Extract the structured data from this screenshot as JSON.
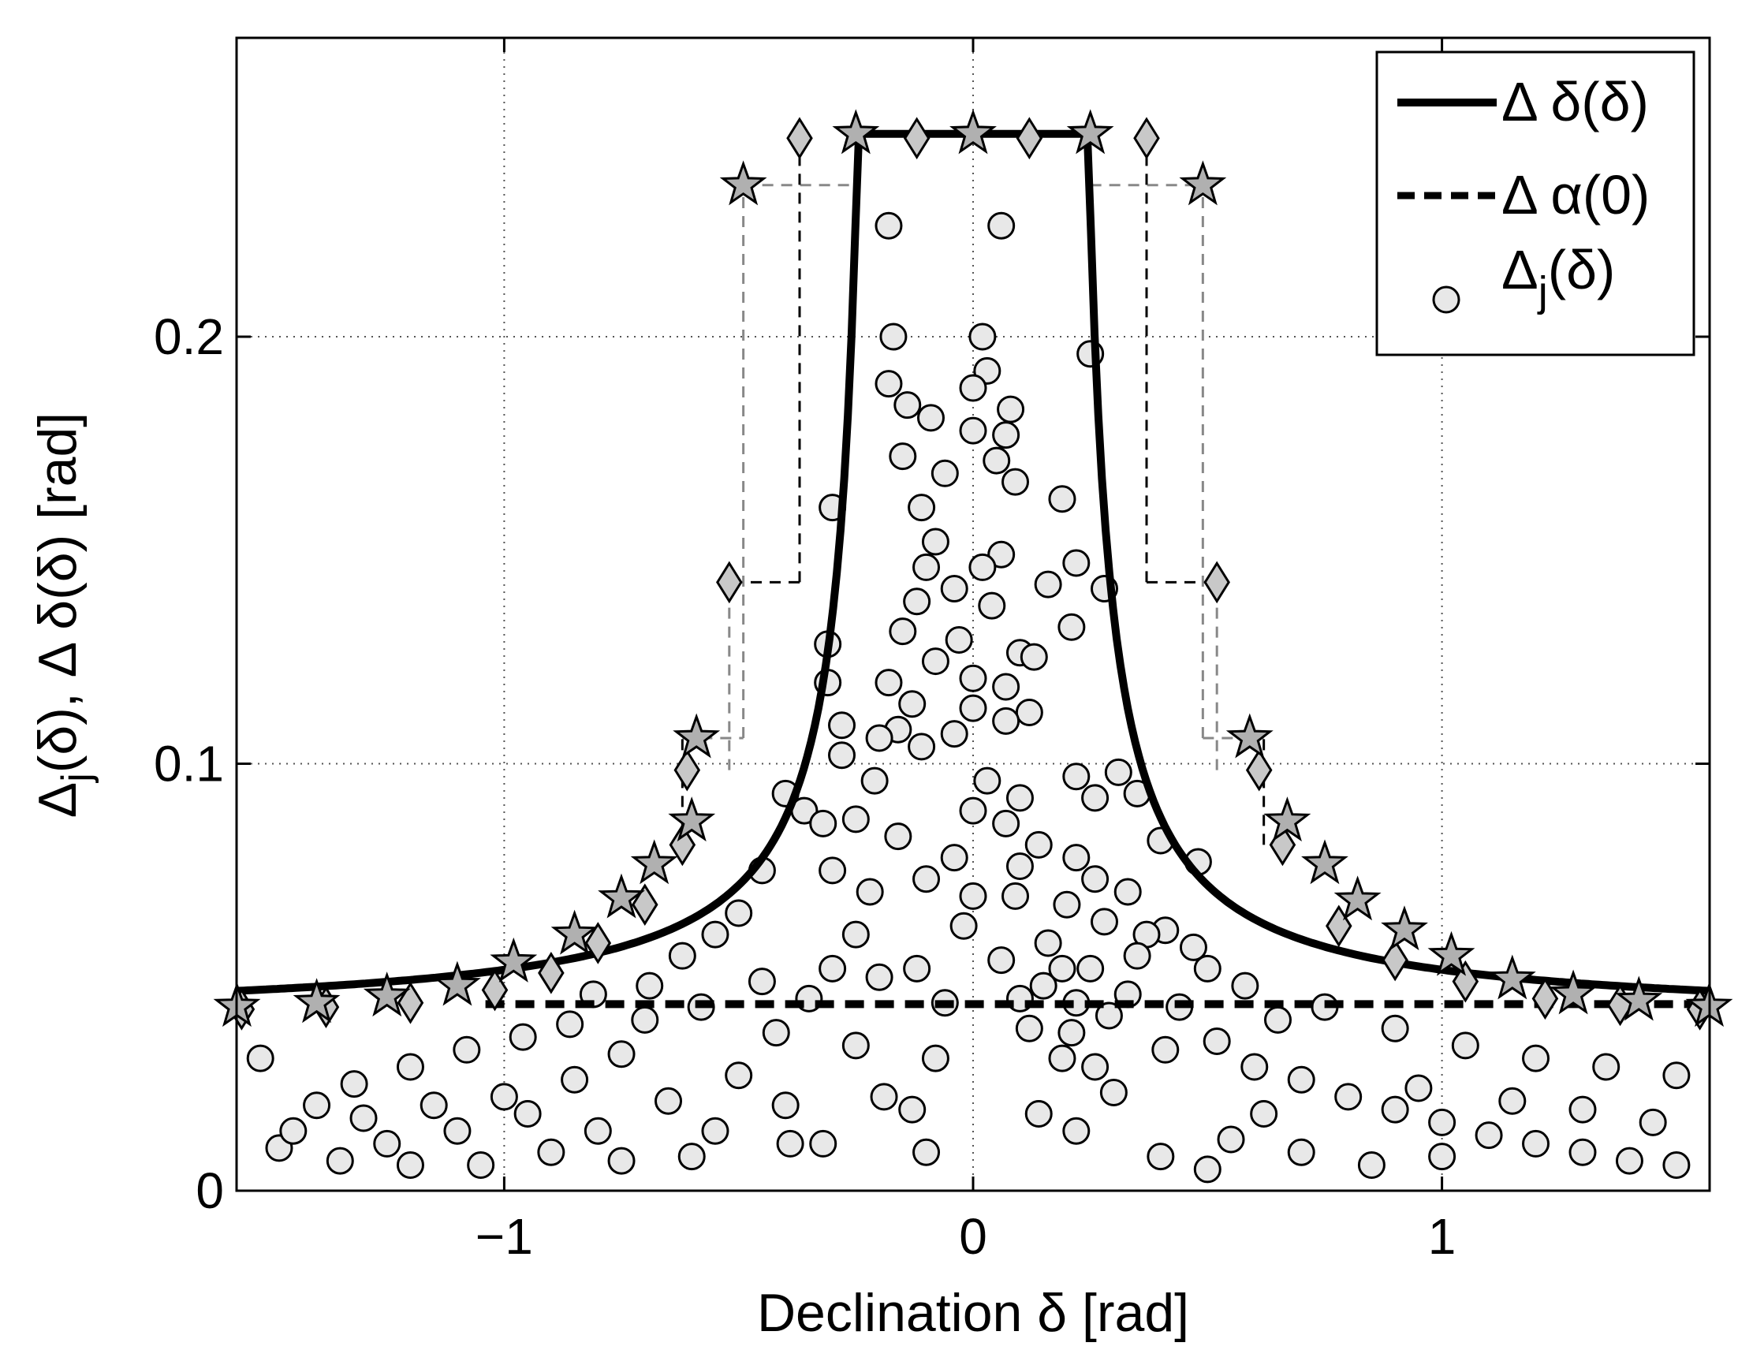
{
  "chart_data": {
    "type": "scatter",
    "title": "",
    "xlabel": "Declination δ [rad]",
    "ylabel": "Δj(δ), Δ δ(δ) [rad]",
    "ylabel_parts": {
      "pre": "Δ",
      "sub": "j",
      "post": "(δ), Δ δ(δ) [rad]"
    },
    "xlim": [
      -1.5708,
      1.5708
    ],
    "ylim": [
      0,
      0.27
    ],
    "xticks": [
      -1,
      0,
      1
    ],
    "xtick_labels": [
      "−1",
      "0",
      "1"
    ],
    "yticks": [
      0,
      0.1,
      0.2
    ],
    "ytick_labels": [
      "0",
      "0.1",
      "0.2"
    ],
    "grid": true,
    "legend_position": "top-right",
    "legend": [
      {
        "name": "Δ δ(δ)",
        "style": "solid"
      },
      {
        "name": "Δ α(0)",
        "style": "dashed"
      },
      {
        "name": "Δj(δ)",
        "style": "circle",
        "pre": "Δ",
        "sub": "j",
        "post": "(δ)"
      }
    ],
    "series": [
      {
        "name": "Δ δ(δ)",
        "kind": "line",
        "cap": 0.2475,
        "cap_half_width": 0.24,
        "asymptote": 0.0443
      },
      {
        "name": "Δ α(0)",
        "kind": "hline",
        "y": 0.0437,
        "x_range": [
          -1.04,
          1.53
        ]
      },
      {
        "name": "Δj(δ)",
        "kind": "scatter",
        "points": [
          [
            -0.18,
            0.226
          ],
          [
            0.06,
            0.226
          ],
          [
            -0.17,
            0.2
          ],
          [
            0.02,
            0.2
          ],
          [
            -0.18,
            0.189
          ],
          [
            0.25,
            0.196
          ],
          [
            0.03,
            0.192
          ],
          [
            -0.14,
            0.184
          ],
          [
            0.0,
            0.188
          ],
          [
            0.08,
            0.183
          ],
          [
            -0.09,
            0.181
          ],
          [
            0.0,
            0.178
          ],
          [
            0.07,
            0.177
          ],
          [
            -0.15,
            0.172
          ],
          [
            0.05,
            0.171
          ],
          [
            -0.06,
            0.168
          ],
          [
            0.09,
            0.166
          ],
          [
            -0.11,
            0.16
          ],
          [
            0.19,
            0.162
          ],
          [
            -0.3,
            0.16
          ],
          [
            -0.08,
            0.152
          ],
          [
            0.06,
            0.149
          ],
          [
            -0.1,
            0.146
          ],
          [
            0.02,
            0.146
          ],
          [
            0.16,
            0.142
          ],
          [
            0.22,
            0.147
          ],
          [
            -0.04,
            0.141
          ],
          [
            0.28,
            0.141
          ],
          [
            -0.12,
            0.138
          ],
          [
            0.04,
            0.137
          ],
          [
            -0.15,
            0.131
          ],
          [
            0.21,
            0.132
          ],
          [
            -0.03,
            0.129
          ],
          [
            0.1,
            0.126
          ],
          [
            -0.31,
            0.128
          ],
          [
            -0.08,
            0.124
          ],
          [
            0.0,
            0.12
          ],
          [
            0.13,
            0.125
          ],
          [
            -0.18,
            0.119
          ],
          [
            0.07,
            0.118
          ],
          [
            -0.31,
            0.119
          ],
          [
            -0.13,
            0.114
          ],
          [
            0.0,
            0.113
          ],
          [
            0.12,
            0.112
          ],
          [
            -0.16,
            0.108
          ],
          [
            -0.28,
            0.109
          ],
          [
            -0.04,
            0.107
          ],
          [
            0.07,
            0.11
          ],
          [
            -0.2,
            0.106
          ],
          [
            -0.11,
            0.104
          ],
          [
            -0.28,
            0.102
          ],
          [
            0.22,
            0.097
          ],
          [
            0.26,
            0.092
          ],
          [
            0.03,
            0.096
          ],
          [
            0.1,
            0.092
          ],
          [
            0.31,
            0.098
          ],
          [
            0.35,
            0.093
          ],
          [
            0.0,
            0.089
          ],
          [
            0.07,
            0.086
          ],
          [
            0.14,
            0.081
          ],
          [
            -0.04,
            0.078
          ],
          [
            0.22,
            0.078
          ],
          [
            0.1,
            0.076
          ],
          [
            0.4,
            0.082
          ],
          [
            0.48,
            0.077
          ],
          [
            0.26,
            0.073
          ],
          [
            0.33,
            0.07
          ],
          [
            0.2,
            0.067
          ],
          [
            0.0,
            0.069
          ],
          [
            0.09,
            0.069
          ],
          [
            0.28,
            0.063
          ],
          [
            0.41,
            0.061
          ],
          [
            0.37,
            0.06
          ],
          [
            0.16,
            0.058
          ],
          [
            0.06,
            0.054
          ],
          [
            0.19,
            0.052
          ],
          [
            0.35,
            0.055
          ],
          [
            0.47,
            0.057
          ],
          [
            0.1,
            0.045
          ],
          [
            0.22,
            0.044
          ],
          [
            0.29,
            0.041
          ],
          [
            0.21,
            0.037
          ],
          [
            0.26,
            0.029
          ],
          [
            0.19,
            0.031
          ],
          [
            0.41,
            0.033
          ],
          [
            0.3,
            0.023
          ],
          [
            0.14,
            0.018
          ],
          [
            0.22,
            0.014
          ],
          [
            -0.13,
            0.019
          ],
          [
            -0.19,
            0.022
          ],
          [
            -0.32,
            0.011
          ],
          [
            -0.39,
            0.011
          ],
          [
            -0.1,
            0.009
          ],
          [
            -0.08,
            0.031
          ],
          [
            -0.2,
            0.05
          ],
          [
            -0.25,
            0.06
          ],
          [
            -0.22,
            0.07
          ],
          [
            -0.3,
            0.075
          ],
          [
            -0.16,
            0.083
          ],
          [
            -0.1,
            0.073
          ],
          [
            -0.36,
            0.089
          ],
          [
            -0.32,
            0.086
          ],
          [
            -0.4,
            0.093
          ],
          [
            -0.21,
            0.096
          ],
          [
            -0.25,
            0.087
          ],
          [
            -0.45,
            0.075
          ],
          [
            -0.5,
            0.065
          ],
          [
            -0.55,
            0.06
          ],
          [
            -0.62,
            0.055
          ],
          [
            -0.69,
            0.048
          ],
          [
            -0.81,
            0.046
          ],
          [
            -0.75,
            0.032
          ],
          [
            -0.86,
            0.039
          ],
          [
            -0.96,
            0.036
          ],
          [
            -1.08,
            0.033
          ],
          [
            -1.2,
            0.029
          ],
          [
            -1.32,
            0.025
          ],
          [
            -1.4,
            0.02
          ],
          [
            -1.52,
            0.031
          ],
          [
            -1.48,
            0.01
          ],
          [
            -1.35,
            0.007
          ],
          [
            -1.2,
            0.006
          ],
          [
            -1.05,
            0.006
          ],
          [
            -0.9,
            0.009
          ],
          [
            -0.75,
            0.007
          ],
          [
            -0.6,
            0.008
          ],
          [
            -0.8,
            0.014
          ],
          [
            -0.95,
            0.018
          ],
          [
            -1.1,
            0.014
          ],
          [
            -1.25,
            0.011
          ],
          [
            -0.55,
            0.014
          ],
          [
            -0.65,
            0.021
          ],
          [
            -0.5,
            0.027
          ],
          [
            -0.42,
            0.037
          ],
          [
            -0.35,
            0.045
          ],
          [
            0.52,
            0.035
          ],
          [
            0.6,
            0.029
          ],
          [
            0.7,
            0.026
          ],
          [
            0.8,
            0.022
          ],
          [
            0.9,
            0.019
          ],
          [
            1.0,
            0.016
          ],
          [
            1.1,
            0.013
          ],
          [
            1.2,
            0.011
          ],
          [
            1.3,
            0.009
          ],
          [
            1.4,
            0.007
          ],
          [
            1.5,
            0.006
          ],
          [
            0.55,
            0.012
          ],
          [
            0.7,
            0.009
          ],
          [
            0.85,
            0.006
          ],
          [
            1.0,
            0.008
          ],
          [
            1.15,
            0.021
          ],
          [
            1.3,
            0.019
          ],
          [
            1.45,
            0.016
          ],
          [
            0.65,
            0.04
          ],
          [
            0.58,
            0.048
          ],
          [
            0.75,
            0.043
          ],
          [
            0.9,
            0.038
          ],
          [
            1.05,
            0.034
          ],
          [
            1.2,
            0.031
          ],
          [
            1.35,
            0.029
          ],
          [
            1.5,
            0.027
          ],
          [
            0.95,
            0.024
          ],
          [
            0.62,
            0.018
          ],
          [
            0.5,
            0.005
          ],
          [
            0.4,
            0.008
          ],
          [
            -0.02,
            0.062
          ],
          [
            -0.12,
            0.052
          ],
          [
            -0.3,
            0.052
          ],
          [
            -0.45,
            0.049
          ],
          [
            -0.58,
            0.043
          ],
          [
            -0.7,
            0.04
          ],
          [
            -0.85,
            0.026
          ],
          [
            -1.0,
            0.022
          ],
          [
            -1.15,
            0.02
          ],
          [
            -1.3,
            0.017
          ],
          [
            -1.45,
            0.014
          ],
          [
            -0.4,
            0.02
          ],
          [
            -0.25,
            0.034
          ],
          [
            0.12,
            0.038
          ],
          [
            0.15,
            0.048
          ],
          [
            -0.06,
            0.044
          ],
          [
            0.25,
            0.052
          ],
          [
            0.33,
            0.046
          ],
          [
            0.44,
            0.043
          ],
          [
            0.5,
            0.052
          ]
        ]
      }
    ],
    "markers_star": [
      [
        -1.57,
        0.0431
      ],
      [
        -1.4,
        0.044
      ],
      [
        -1.25,
        0.0455
      ],
      [
        -1.1,
        0.048
      ],
      [
        -0.98,
        0.0535
      ],
      [
        -0.85,
        0.06
      ],
      [
        -0.75,
        0.0685
      ],
      [
        -0.68,
        0.0765
      ],
      [
        -0.6,
        0.0865
      ],
      [
        -0.59,
        0.106
      ],
      [
        -0.49,
        0.2355
      ],
      [
        -0.25,
        0.2475
      ],
      [
        0.0,
        0.2475
      ],
      [
        0.25,
        0.2475
      ],
      [
        0.49,
        0.2355
      ],
      [
        0.59,
        0.106
      ],
      [
        0.67,
        0.0865
      ],
      [
        0.75,
        0.0765
      ],
      [
        0.82,
        0.068
      ],
      [
        0.92,
        0.061
      ],
      [
        1.02,
        0.055
      ],
      [
        1.15,
        0.0495
      ],
      [
        1.28,
        0.046
      ],
      [
        1.42,
        0.0445
      ],
      [
        1.57,
        0.0431
      ]
    ],
    "markers_diamond": [
      [
        -1.56,
        0.0425
      ],
      [
        -1.38,
        0.043
      ],
      [
        -1.2,
        0.044
      ],
      [
        -1.02,
        0.047
      ],
      [
        -0.9,
        0.051
      ],
      [
        -0.8,
        0.058
      ],
      [
        -0.7,
        0.067
      ],
      [
        -0.62,
        0.081
      ],
      [
        -0.61,
        0.0985
      ],
      [
        -0.52,
        0.1425
      ],
      [
        -0.37,
        0.2465
      ],
      [
        -0.12,
        0.2465
      ],
      [
        0.12,
        0.2465
      ],
      [
        0.37,
        0.2465
      ],
      [
        0.52,
        0.1425
      ],
      [
        0.61,
        0.0985
      ],
      [
        0.66,
        0.081
      ],
      [
        0.78,
        0.062
      ],
      [
        0.9,
        0.054
      ],
      [
        1.05,
        0.049
      ],
      [
        1.22,
        0.045
      ],
      [
        1.38,
        0.0435
      ],
      [
        1.55,
        0.0425
      ]
    ],
    "steps_gray": [
      [
        -0.49,
        0.2355
      ],
      [
        -0.25,
        0.2355
      ],
      [
        -0.62,
        0.106
      ],
      [
        -0.49,
        0.106
      ],
      [
        0.25,
        0.2355
      ],
      [
        0.49,
        0.2355
      ],
      [
        0.49,
        0.106
      ],
      [
        0.62,
        0.106
      ]
    ],
    "steps_black": [
      [
        -0.37,
        0.1425
      ],
      [
        -0.52,
        0.1425
      ],
      [
        0.37,
        0.1425
      ],
      [
        0.52,
        0.1425
      ]
    ]
  }
}
